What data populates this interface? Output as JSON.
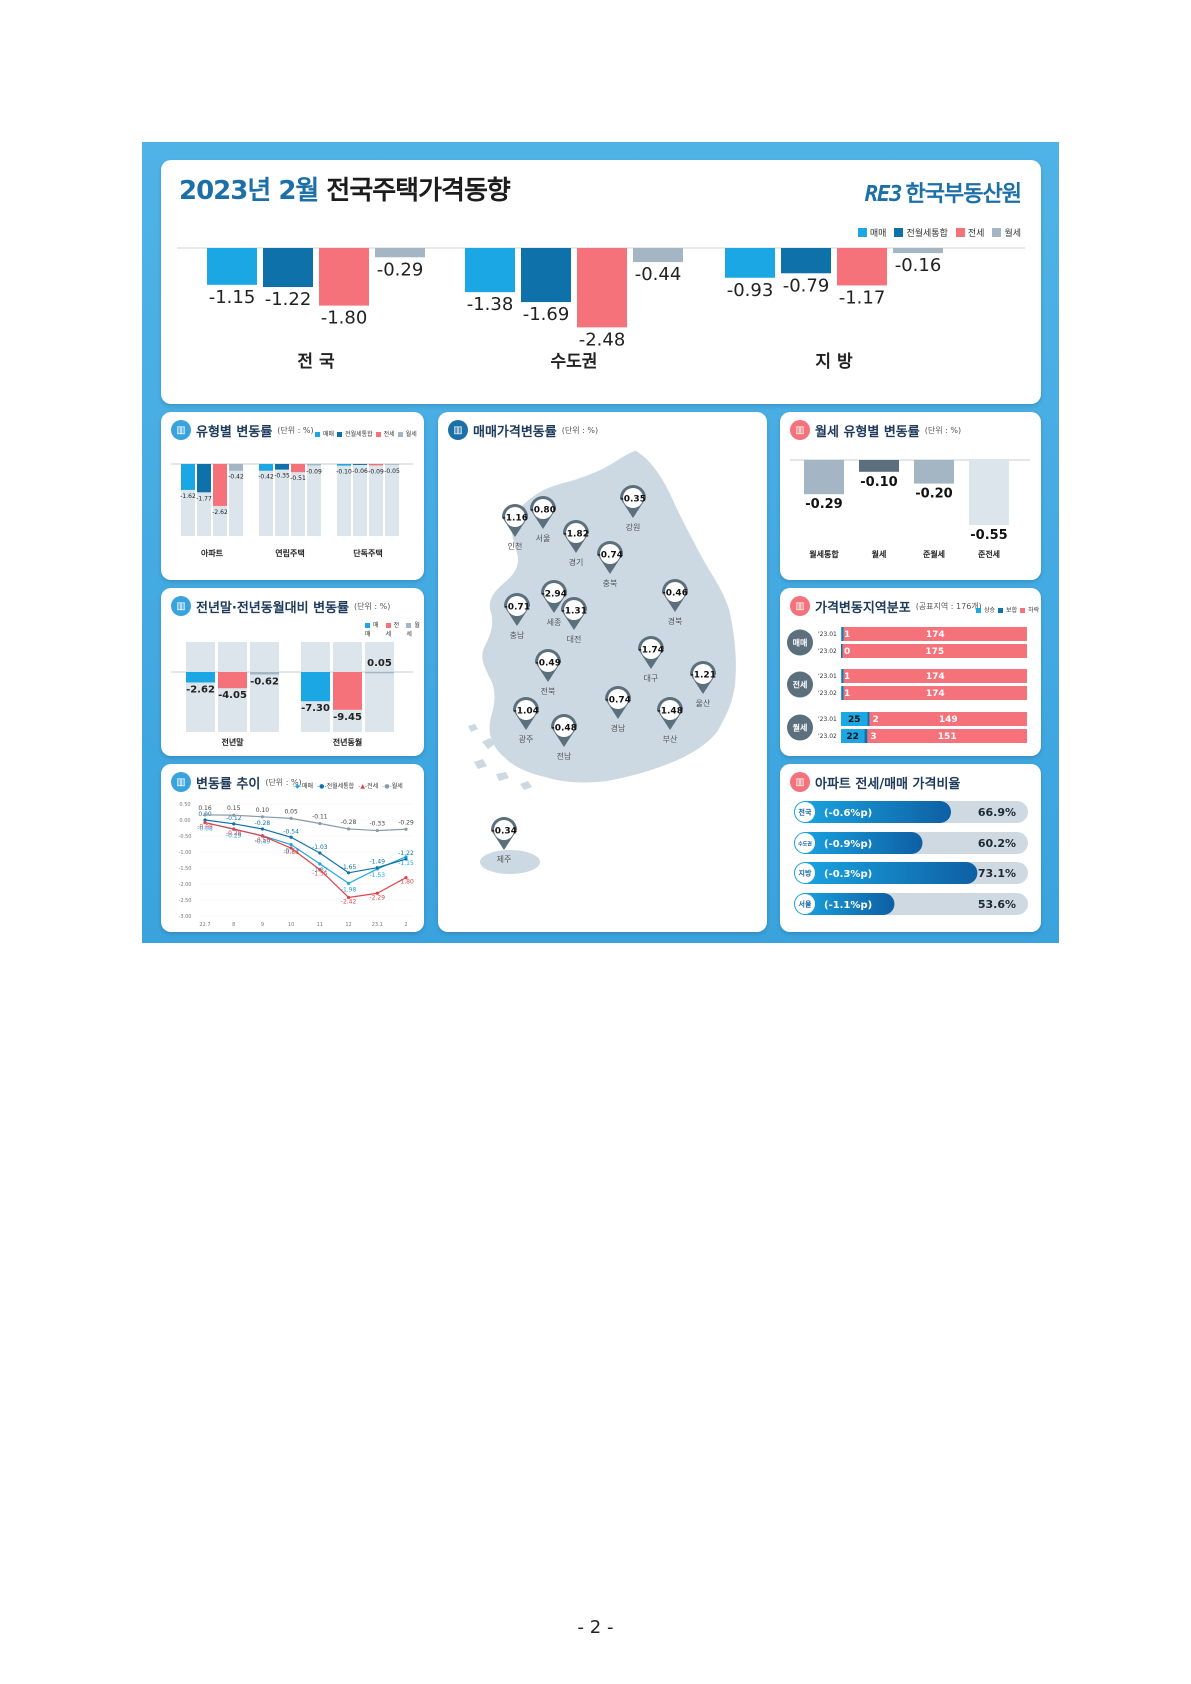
{
  "header": {
    "title_year": "2023년 2월",
    "title_main": "전국주택가격동향",
    "logo_mark": "RE3",
    "logo_text": "한국부동산원"
  },
  "colors": {
    "sale": "#1aa7e3",
    "combined": "#0e71a9",
    "jeonse": "#f6727a",
    "monthly": "#a4b6c3",
    "bg_bar": "#dce5ec",
    "dark": "#5b6f7c"
  },
  "legend_main": [
    "매매",
    "전월세통합",
    "전세",
    "월세"
  ],
  "top_chart": {
    "type": "bar",
    "groups": [
      "전 국",
      "수도권",
      "지 방"
    ],
    "series": [
      {
        "name": "매매",
        "values": [
          -1.15,
          -1.38,
          -0.93
        ]
      },
      {
        "name": "전월세통합",
        "values": [
          -1.22,
          -1.69,
          -0.79
        ]
      },
      {
        "name": "전세",
        "values": [
          -1.8,
          -2.48,
          -1.17
        ]
      },
      {
        "name": "월세",
        "values": [
          -0.29,
          -0.44,
          -0.16
        ]
      }
    ],
    "labels": [
      [
        "-1.15",
        "-1.22",
        "-1.80",
        "-0.29"
      ],
      [
        "-1.38",
        "-1.69",
        "-2.48",
        "-0.44"
      ],
      [
        "-0.93",
        "-0.79",
        "-1.17",
        "-0.16"
      ]
    ]
  },
  "type_section": {
    "title": "유형별 변동률",
    "unit": "(단위 : %)",
    "legend": [
      "매매",
      "전월세통합",
      "전세",
      "월세"
    ],
    "chart_data": {
      "type": "bar",
      "categories": [
        "아파트",
        "연립주택",
        "단독주택"
      ],
      "series": [
        {
          "name": "매매",
          "values": [
            -1.62,
            -0.42,
            -0.1
          ]
        },
        {
          "name": "전월세통합",
          "values": [
            -1.77,
            -0.35,
            -0.06
          ]
        },
        {
          "name": "전세",
          "values": [
            -2.62,
            -0.51,
            -0.09
          ]
        },
        {
          "name": "월세",
          "values": [
            -0.42,
            -0.09,
            -0.05
          ]
        }
      ],
      "labels": [
        [
          "-1.62",
          "-1.77",
          "-2.62",
          "-0.42"
        ],
        [
          "-0.42",
          "-0.35",
          "-0.51",
          "-0.09"
        ],
        [
          "-0.10",
          "-0.06",
          "-0.09",
          "-0.05"
        ]
      ]
    }
  },
  "yearend_section": {
    "title": "전년말·전년동월대비 변동률",
    "unit": "(단위 : %)",
    "legend": [
      "매매",
      "전세",
      "월세"
    ],
    "chart_data": {
      "type": "bar",
      "categories": [
        "전년말",
        "전년동월"
      ],
      "series": [
        {
          "name": "매매",
          "values": [
            -2.62,
            -7.3
          ]
        },
        {
          "name": "전세",
          "values": [
            -4.05,
            -9.45
          ]
        },
        {
          "name": "월세",
          "values": [
            -0.62,
            0.05
          ]
        }
      ],
      "labels": [
        [
          "-2.62",
          "-4.05",
          "-0.62"
        ],
        [
          "-7.30",
          "-9.45",
          "0.05"
        ]
      ]
    }
  },
  "trend_section": {
    "title": "변동률 추이",
    "unit": "(단위 : %)",
    "legend": [
      "매매",
      "전월세통합",
      "전세",
      "월세"
    ],
    "chart_data": {
      "type": "line",
      "x": [
        "22.7",
        "8",
        "9",
        "10",
        "11",
        "12",
        "23.1",
        "2"
      ],
      "yticks": [
        "0.50",
        "0.00",
        "-0.50",
        "-1.00",
        "-1.50",
        "-2.00",
        "-2.50",
        "-3.00"
      ],
      "ylim": [
        -3.0,
        0.5
      ],
      "series": [
        {
          "name": "매매",
          "values": [
            -0.08,
            -0.29,
            -0.49,
            -0.77,
            -1.37,
            -1.98,
            -1.53,
            -1.15
          ]
        },
        {
          "name": "전월세통합",
          "values": [
            0.0,
            -0.12,
            -0.28,
            -0.54,
            -1.03,
            -1.65,
            -1.49,
            -1.22
          ]
        },
        {
          "name": "전세",
          "values": [
            -0.08,
            -0.28,
            -0.5,
            -0.88,
            -1.55,
            -2.42,
            -2.29,
            -1.8
          ]
        },
        {
          "name": "월세",
          "values": [
            0.16,
            0.15,
            0.1,
            0.05,
            -0.11,
            -0.28,
            -0.33,
            -0.29
          ]
        }
      ],
      "labels": [
        [
          "-0.08",
          "-0.29",
          "-0.49",
          "-0.77",
          "-1.37",
          "-1.98",
          "-1.53",
          "-1.15"
        ],
        [
          "0.00",
          "-0.12",
          "-0.28",
          "-0.54",
          "-1.03",
          "-1.65",
          "-1.49",
          "-1.22"
        ],
        [
          "-0.08",
          "-0.28",
          "-0.50",
          "-0.88",
          "-1.55",
          "-2.42",
          "-2.29",
          "-1.80"
        ],
        [
          "0.16",
          "0.15",
          "0.10",
          "0.05",
          "-0.11",
          "-0.28",
          "-0.33",
          "-0.29"
        ]
      ]
    }
  },
  "map_section": {
    "title": "매매가격변동률",
    "unit": "(단위 : %)",
    "regions": [
      {
        "name": "인천",
        "value": "-1.16"
      },
      {
        "name": "서울",
        "value": "-0.80"
      },
      {
        "name": "경기",
        "value": "-1.82"
      },
      {
        "name": "강원",
        "value": "-0.35"
      },
      {
        "name": "충북",
        "value": "-0.74"
      },
      {
        "name": "세종",
        "value": "-2.94"
      },
      {
        "name": "충남",
        "value": "-0.71"
      },
      {
        "name": "대전",
        "value": "-1.31"
      },
      {
        "name": "경북",
        "value": "-0.46"
      },
      {
        "name": "전북",
        "value": "-0.49"
      },
      {
        "name": "대구",
        "value": "-1.74"
      },
      {
        "name": "울산",
        "value": "-1.21"
      },
      {
        "name": "경남",
        "value": "-0.74"
      },
      {
        "name": "광주",
        "value": "-1.04"
      },
      {
        "name": "부산",
        "value": "-1.48"
      },
      {
        "name": "전남",
        "value": "-0.48"
      },
      {
        "name": "제주",
        "value": "-0.34"
      }
    ]
  },
  "monthly_section": {
    "title": "월세 유형별 변동률",
    "unit": "(단위 : %)",
    "chart_data": {
      "type": "bar",
      "categories": [
        "월세통합",
        "월세",
        "준월세",
        "준전세"
      ],
      "values": [
        -0.29,
        -0.1,
        -0.2,
        -0.55
      ],
      "labels": [
        "-0.29",
        "-0.10",
        "-0.20",
        "-0.55"
      ]
    }
  },
  "dist_section": {
    "title": "가격변동지역분포",
    "unit": "(공표지역 : 176개)",
    "legend": [
      "상승",
      "보합",
      "하락"
    ],
    "chart_data": {
      "type": "bar",
      "groups": [
        "매매",
        "전세",
        "월세"
      ],
      "rows": [
        {
          "group": "매매",
          "period": "'23.01",
          "up": 1,
          "flat": 1,
          "down": 174,
          "labels": [
            "1",
            "174"
          ]
        },
        {
          "group": "매매",
          "period": "'23.02",
          "up": 0,
          "flat": 1,
          "down": 175,
          "labels": [
            "0",
            "175"
          ]
        },
        {
          "group": "전세",
          "period": "'23.01",
          "up": 1,
          "flat": 1,
          "down": 174,
          "labels": [
            "1",
            "174"
          ]
        },
        {
          "group": "전세",
          "period": "'23.02",
          "up": 1,
          "flat": 1,
          "down": 174,
          "labels": [
            "1",
            "174"
          ]
        },
        {
          "group": "월세",
          "period": "'23.01",
          "up": 25,
          "flat": 2,
          "down": 149,
          "labels": [
            "25",
            "2",
            "149"
          ]
        },
        {
          "group": "월세",
          "period": "'23.02",
          "up": 22,
          "flat": 3,
          "down": 151,
          "labels": [
            "22",
            "3",
            "151"
          ]
        }
      ]
    }
  },
  "ratio_section": {
    "title": "아파트 전세/매매 가격비율",
    "chart_data": {
      "type": "bar",
      "rows": [
        {
          "region": "전국",
          "change": "(-0.6%p)",
          "value": 66.9,
          "label": "66.9%"
        },
        {
          "region": "수도권",
          "change": "(-0.9%p)",
          "value": 60.2,
          "label": "60.2%"
        },
        {
          "region": "지방",
          "change": "(-0.3%p)",
          "value": 73.1,
          "label": "73.1%"
        },
        {
          "region": "서울",
          "change": "(-1.1%p)",
          "value": 53.6,
          "label": "53.6%"
        }
      ]
    }
  },
  "page_number": "- 2 -"
}
